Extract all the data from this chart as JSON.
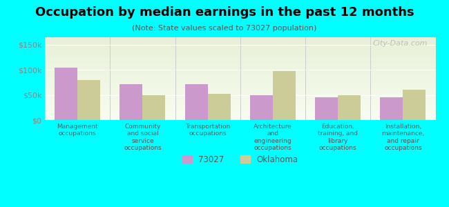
{
  "title": "Occupation by median earnings in the past 12 months",
  "subtitle": "(Note: State values scaled to 73027 population)",
  "categories": [
    "Management\noccupations",
    "Community\nand social\nservice\noccupations",
    "Transportation\noccupations",
    "Architecture\nand\nengineering\noccupations",
    "Education,\ntraining, and\nlibrary\noccupations",
    "Installation,\nmaintenance,\nand repair\noccupations"
  ],
  "values_73027": [
    105000,
    72000,
    72000,
    49000,
    46000,
    46000
  ],
  "values_oklahoma": [
    80000,
    49000,
    52000,
    98000,
    50000,
    60000
  ],
  "color_73027": "#cc99cc",
  "color_oklahoma": "#cccc99",
  "ylim": [
    0,
    165000
  ],
  "yticks": [
    0,
    50000,
    100000,
    150000
  ],
  "ytick_labels": [
    "$0",
    "$50k",
    "$100k",
    "$150k"
  ],
  "background_color": "#00ffff",
  "plot_bg_top": "#f0f5e8",
  "plot_bg_bottom": "#ffffff",
  "bar_width": 0.35,
  "legend_labels": [
    "73027",
    "Oklahoma"
  ],
  "watermark": "City-Data.com"
}
